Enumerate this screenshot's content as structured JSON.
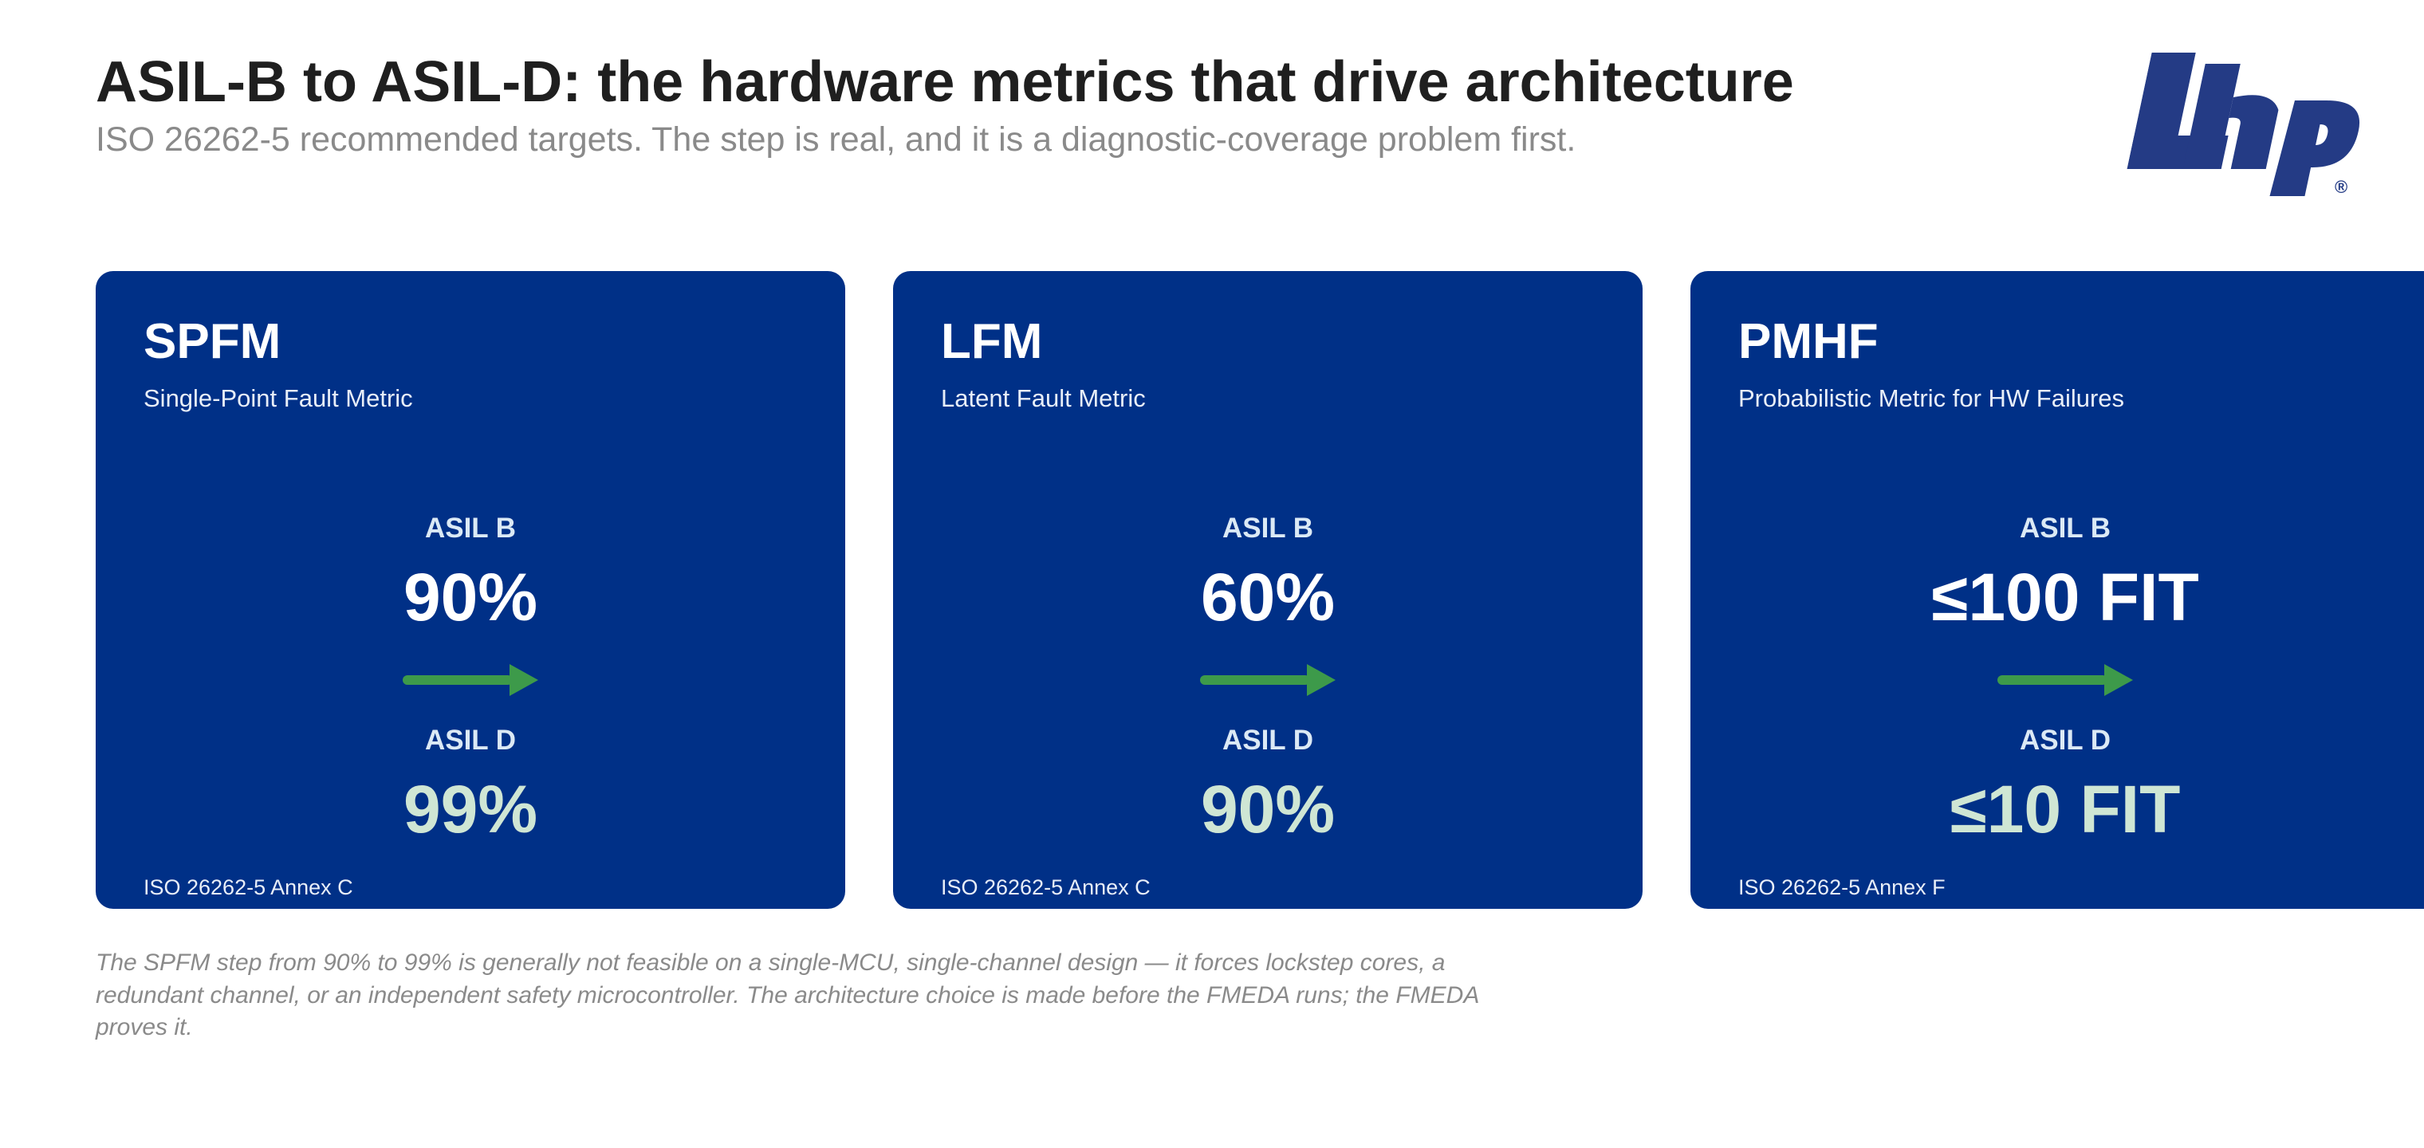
{
  "header": {
    "title": "ASIL-B to ASIL-D: the hardware metrics that drive architecture",
    "subtitle": "ISO 26262-5 recommended targets. The step is real, and it is a diagnostic-coverage problem first."
  },
  "logo": {
    "text": "Lhp",
    "registered_mark": "®",
    "color": "#243b85"
  },
  "colors": {
    "card_background": "#003087",
    "arrow": "#3d9a4a",
    "asil_d_value": "#cfe6d4"
  },
  "cards": [
    {
      "name": "SPFM",
      "description": "Single-Point Fault Metric",
      "asil_b_label": "ASIL B",
      "asil_b_value": "90%",
      "asil_d_label": "ASIL D",
      "asil_d_value": "99%",
      "source": "ISO 26262-5 Annex C"
    },
    {
      "name": "LFM",
      "description": "Latent Fault Metric",
      "asil_b_label": "ASIL B",
      "asil_b_value": "60%",
      "asil_d_label": "ASIL D",
      "asil_d_value": "90%",
      "source": "ISO 26262-5 Annex C"
    },
    {
      "name": "PMHF",
      "description": "Probabilistic Metric for HW Failures",
      "asil_b_label": "ASIL B",
      "asil_b_value": "≤100 FIT",
      "asil_d_label": "ASIL D",
      "asil_d_value": "≤10 FIT",
      "source": "ISO 26262-5 Annex F"
    }
  ],
  "footnote": "The SPFM step from 90% to 99% is generally not feasible on a single-MCU, single-channel design — it forces lockstep cores, a redundant channel, or an independent safety microcontroller. The architecture choice is made before the FMEDA runs; the FMEDA proves it."
}
